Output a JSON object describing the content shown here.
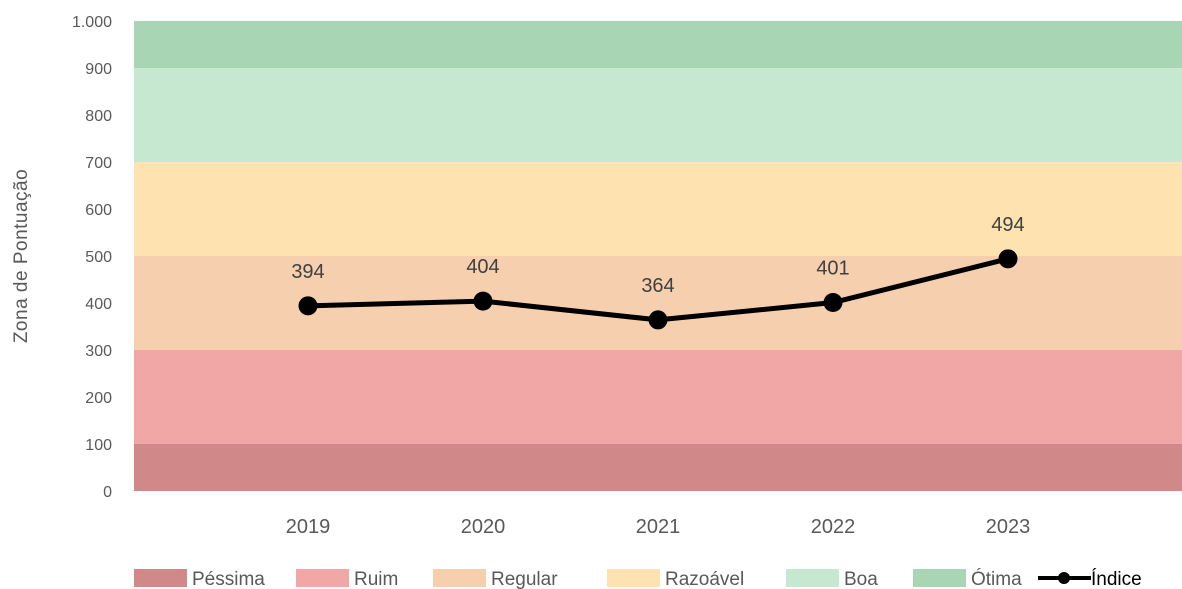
{
  "chart_data": {
    "type": "line",
    "ylabel": "Zona  de  Pontuação",
    "xlabel": "",
    "ylim": [
      0,
      1000
    ],
    "y_ticks": [
      0,
      100,
      200,
      300,
      400,
      500,
      600,
      700,
      800,
      900,
      1000
    ],
    "y_tick_labels": [
      "0",
      "100",
      "200",
      "300",
      "400",
      "500",
      "600",
      "700",
      "800",
      "900",
      "1.000"
    ],
    "categories": [
      "2019",
      "2020",
      "2021",
      "2022",
      "2023"
    ],
    "series": [
      {
        "name": "Índice",
        "values": [
          394,
          404,
          364,
          401,
          494
        ],
        "color": "#000000"
      }
    ],
    "data_labels": [
      "394",
      "404",
      "364",
      "401",
      "494"
    ],
    "zones": [
      {
        "name": "Péssima",
        "from": 0,
        "to": 100,
        "color": "#D18888"
      },
      {
        "name": "Ruim",
        "from": 100,
        "to": 300,
        "color": "#F2A7A7"
      },
      {
        "name": "Regular",
        "from": 300,
        "to": 500,
        "color": "#F5CFAE"
      },
      {
        "name": "Razoável",
        "from": 500,
        "to": 700,
        "color": "#FEE3B1"
      },
      {
        "name": "Boa",
        "from": 700,
        "to": 900,
        "color": "#C6E7D0"
      },
      {
        "name": "Ótima",
        "from": 900,
        "to": 1000,
        "color": "#A8D5B3"
      }
    ],
    "legend_position": "bottom",
    "grid": false
  }
}
